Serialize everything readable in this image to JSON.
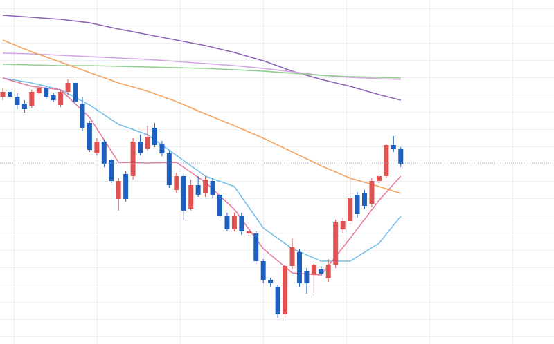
{
  "chart_data": {
    "type": "candlestick",
    "ylim": [
      2,
      500
    ],
    "up_color": "#e05252",
    "down_color": "#1e60c0",
    "open": [
      360,
      367,
      360,
      350,
      347,
      365,
      373,
      362,
      348,
      367,
      380,
      350,
      322,
      278,
      295,
      268,
      212,
      248,
      245,
      295,
      285,
      315,
      292,
      278,
      225,
      245,
      198,
      232,
      220,
      238,
      218,
      188,
      168,
      188,
      162,
      162,
      122,
      95,
      85,
      45,
      115,
      135,
      108,
      102,
      110,
      97,
      117,
      168,
      180,
      218,
      220,
      205,
      238,
      245,
      290,
      284
    ],
    "high": [
      372,
      370,
      365,
      355,
      370,
      374,
      375,
      366,
      370,
      385,
      382,
      360,
      325,
      300,
      298,
      270,
      242,
      252,
      300,
      305,
      318,
      322,
      296,
      282,
      250,
      250,
      240,
      245,
      245,
      242,
      222,
      192,
      192,
      192,
      168,
      165,
      125,
      98,
      88,
      118,
      155,
      140,
      112,
      122,
      115,
      125,
      182,
      185,
      258,
      222,
      225,
      242,
      260,
      292,
      303,
      287
    ],
    "low": [
      355,
      357,
      342,
      337,
      344,
      363,
      357,
      352,
      345,
      362,
      350,
      310,
      280,
      275,
      258,
      235,
      195,
      208,
      240,
      275,
      282,
      287,
      274,
      228,
      220,
      182,
      195,
      215,
      215,
      214,
      185,
      165,
      165,
      160,
      158,
      118,
      90,
      85,
      40,
      40,
      110,
      85,
      75,
      72,
      100,
      92,
      112,
      162,
      175,
      185,
      198,
      200,
      235,
      242,
      280,
      258
    ],
    "close": [
      367,
      360,
      348,
      342,
      367,
      372,
      360,
      355,
      367,
      380,
      353,
      315,
      283,
      295,
      263,
      238,
      238,
      212,
      295,
      278,
      302,
      290,
      278,
      232,
      245,
      195,
      232,
      218,
      240,
      218,
      188,
      168,
      188,
      165,
      165,
      122,
      95,
      90,
      45,
      115,
      142,
      90,
      90,
      117,
      104,
      117,
      178,
      180,
      213,
      190,
      202,
      238,
      245,
      290,
      284,
      263
    ],
    "line_x": [
      0,
      4,
      8,
      12,
      16,
      20,
      24,
      28,
      32,
      36,
      40,
      44,
      48,
      52,
      55
    ],
    "series": [
      {
        "color": "#8e63b5",
        "values": [
          478,
          475,
          472,
          467,
          458,
          450,
          442,
          434,
          424,
          412,
          397,
          385,
          375,
          363,
          355
        ]
      },
      {
        "color": "#d3a5e0",
        "values": [
          423,
          422,
          420,
          418,
          416,
          414,
          411,
          408,
          405,
          401,
          396,
          391,
          388,
          386,
          385
        ]
      },
      {
        "color": "#8fce8f",
        "values": [
          407,
          406,
          405,
          405,
          404,
          403,
          402,
          401,
          399,
          397,
          394,
          391,
          389,
          388,
          387
        ]
      },
      {
        "color": "#f5a25d",
        "values": [
          442,
          425,
          410,
          395,
          380,
          368,
          353,
          335,
          318,
          300,
          280,
          260,
          242,
          230,
          220
        ]
      },
      {
        "color": "#74bfea",
        "values": [
          387,
          380,
          370,
          348,
          320,
          305,
          275,
          245,
          230,
          170,
          140,
          122,
          122,
          148,
          187
        ]
      },
      {
        "color": "#e8799a",
        "values": [
          387,
          375,
          370,
          330,
          265,
          264,
          265,
          236,
          197,
          140,
          105,
          102,
          155,
          210,
          245
        ]
      }
    ],
    "price_line": 264
  }
}
